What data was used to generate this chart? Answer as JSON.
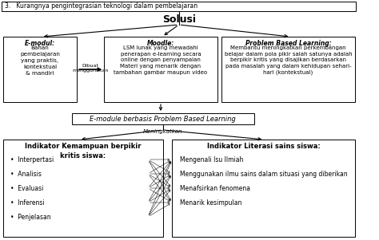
{
  "title_top": "3.   Kurangnya pengintegrasian teknologi dalam pembelajaran",
  "solusi_label": "Solusi",
  "emodul_title": "E-modul:",
  "emodul_body": "Bahan\npembelajaran\nyang praktis,\nkontekstual\n& mandiri",
  "arrow_label": "Dibuat\nmenggunakan",
  "moodle_title": "Moodle:",
  "moodle_body": "LSM lunak yang mewadahi\npenerapan e-learning secara\nonline dengan penyampaian\nMateri yang menarik dengan\ntambahan gambar maupun video",
  "pbl_title": "Problem Based Learning:",
  "pbl_body": "Membantu meningkatkan perkembangan\nbelajar dalam pola pikir salah satunya adalah\nberpikir kritis yang disajikan berdasarkan\npada masalah yang dalam kehidupan sehari-\nhari (kontekstual)",
  "emodule_center": "E-module berbasis Problem Based Learning",
  "meningkatkan": "Meningkatkan",
  "left_box_title": "Indikator Kemampuan berpikir\nkritis siswa:",
  "left_items": [
    "Interpertasi",
    "Analisis",
    "Evaluasi",
    "Inferensi",
    "Penjelasan"
  ],
  "right_box_title": "Indikator Literasi sains siswa:",
  "right_items": [
    "Mengenali Isu Ilmiah",
    "Menggunakan ilmu sains dalam situasi yang diberikan",
    "Menafsirkan fenomena",
    "Menarik kesimpulan"
  ],
  "bg_color": "#ffffff",
  "text_color": "#000000"
}
